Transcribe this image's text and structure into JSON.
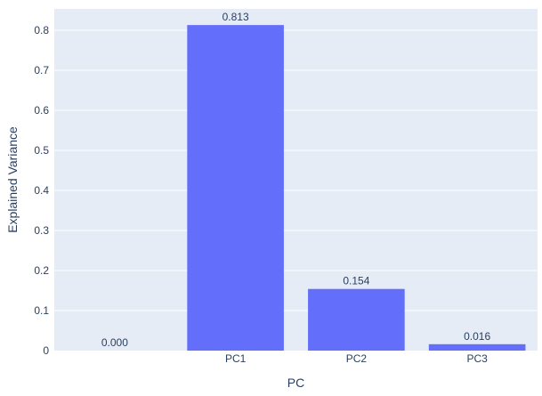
{
  "chart_data": {
    "type": "bar",
    "categories": [
      "",
      "PC1",
      "PC2",
      "PC3"
    ],
    "values": [
      0.0,
      0.813,
      0.154,
      0.016
    ],
    "data_labels": [
      "0.000",
      "0.813",
      "0.154",
      "0.016"
    ],
    "xlabel": "PC",
    "ylabel": "Explained Variance",
    "ylim": [
      0,
      0.8
    ],
    "yticks": [
      0,
      0.1,
      0.2,
      0.3,
      0.4,
      0.5,
      0.6,
      0.7,
      0.8
    ],
    "ytick_labels": [
      "0",
      "0.1",
      "0.2",
      "0.3",
      "0.4",
      "0.5",
      "0.6",
      "0.7",
      "0.8"
    ],
    "grid": true,
    "colors": {
      "bar": "#636efa",
      "plot_bg": "#e5ecf6",
      "grid": "#ffffff",
      "text": "#2a3f5f"
    }
  }
}
